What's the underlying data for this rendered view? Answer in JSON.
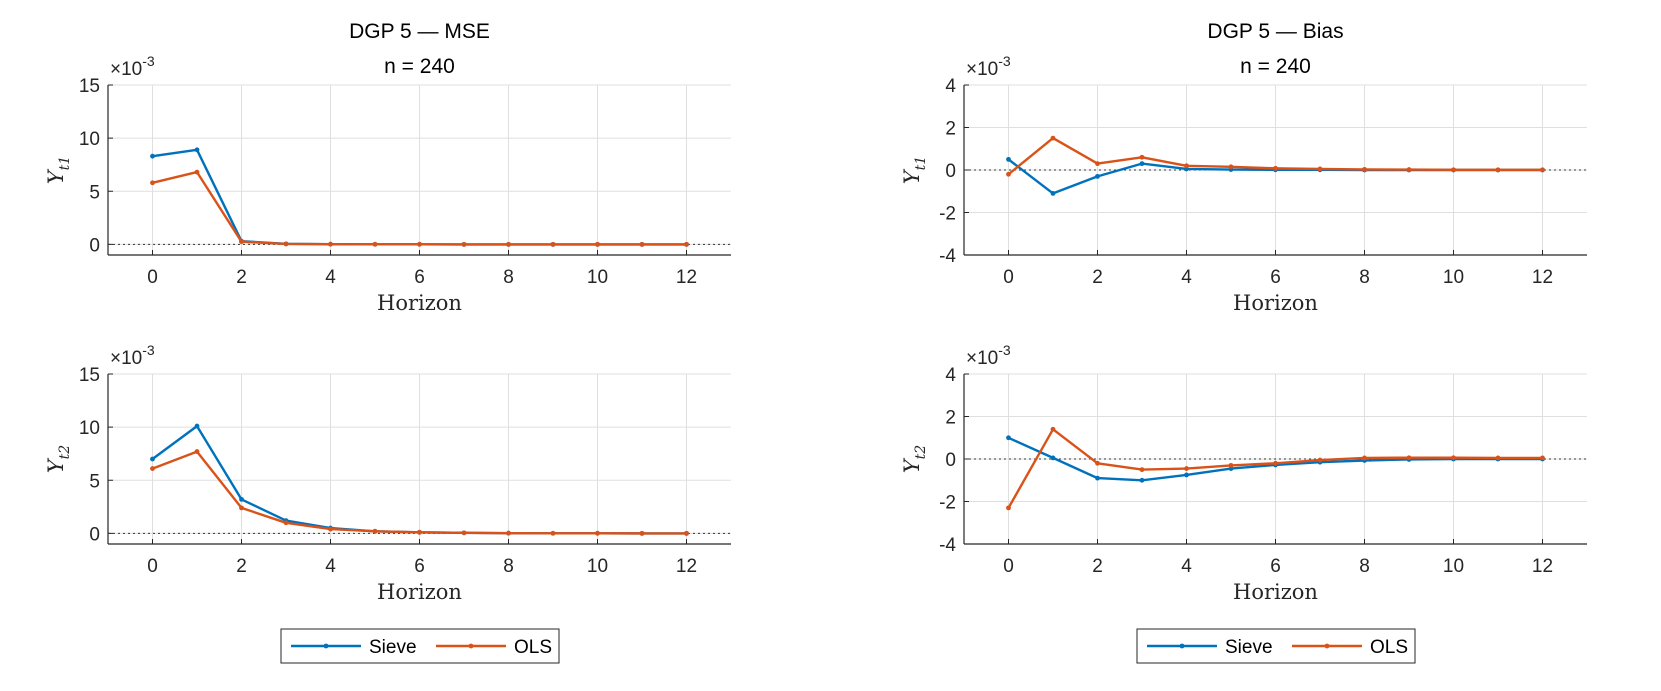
{
  "colors": {
    "sieve": "#0072BD",
    "ols": "#D95319",
    "grid": "#dfdfdf",
    "axis": "#262626"
  },
  "legend": [
    {
      "name": "Sieve",
      "color": "#0072BD"
    },
    {
      "name": "OLS",
      "color": "#D95319"
    }
  ],
  "chart_data": [
    {
      "type": "line",
      "title": "DGP 5  —  MSE",
      "subtitle": "n = 240",
      "xlabel": "Horizon",
      "ylabel": "Y_t1",
      "y_exponent": "×10^-3",
      "xlim": [
        -1,
        13
      ],
      "ylim": [
        -1,
        15
      ],
      "xticks": [
        0,
        2,
        4,
        6,
        8,
        10,
        12
      ],
      "yticks": [
        0,
        5,
        10,
        15
      ],
      "x": [
        0,
        1,
        2,
        3,
        4,
        5,
        6,
        7,
        8,
        9,
        10,
        11,
        12
      ],
      "series": [
        {
          "name": "Sieve",
          "values": [
            8.3,
            8.9,
            0.3,
            0.05,
            0.02,
            0.01,
            0.01,
            0,
            0,
            0,
            0,
            0,
            0
          ]
        },
        {
          "name": "OLS",
          "values": [
            5.8,
            6.8,
            0.25,
            0.04,
            0.02,
            0.01,
            0.01,
            0,
            0,
            0,
            0,
            0,
            0
          ]
        }
      ],
      "zero_line": true,
      "grid": true,
      "legend": "bottom"
    },
    {
      "type": "line",
      "title": "DGP 5  —  Bias",
      "subtitle": "n = 240",
      "xlabel": "Horizon",
      "ylabel": "Y_t1",
      "y_exponent": "×10^-3",
      "xlim": [
        -1,
        13
      ],
      "ylim": [
        -4,
        4
      ],
      "xticks": [
        0,
        2,
        4,
        6,
        8,
        10,
        12
      ],
      "yticks": [
        -4,
        -2,
        0,
        2,
        4
      ],
      "x": [
        0,
        1,
        2,
        3,
        4,
        5,
        6,
        7,
        8,
        9,
        10,
        11,
        12
      ],
      "series": [
        {
          "name": "Sieve",
          "values": [
            0.5,
            -1.1,
            -0.3,
            0.3,
            0.05,
            0.02,
            0.01,
            0.01,
            0.0,
            0.0,
            0.0,
            0.0,
            0.0
          ]
        },
        {
          "name": "OLS",
          "values": [
            -0.2,
            1.5,
            0.3,
            0.6,
            0.2,
            0.15,
            0.08,
            0.05,
            0.03,
            0.02,
            0.01,
            0.01,
            0.01
          ]
        }
      ],
      "zero_line": true,
      "grid": true,
      "legend": "bottom"
    },
    {
      "type": "line",
      "title": "",
      "xlabel": "Horizon",
      "ylabel": "Y_t2",
      "y_exponent": "×10^-3",
      "xlim": [
        -1,
        13
      ],
      "ylim": [
        -1,
        15
      ],
      "xticks": [
        0,
        2,
        4,
        6,
        8,
        10,
        12
      ],
      "yticks": [
        0,
        5,
        10,
        15
      ],
      "x": [
        0,
        1,
        2,
        3,
        4,
        5,
        6,
        7,
        8,
        9,
        10,
        11,
        12
      ],
      "series": [
        {
          "name": "Sieve",
          "values": [
            7.0,
            10.1,
            3.2,
            1.2,
            0.5,
            0.2,
            0.1,
            0.05,
            0.02,
            0.01,
            0.01,
            0,
            0
          ]
        },
        {
          "name": "OLS",
          "values": [
            6.1,
            7.7,
            2.4,
            1.0,
            0.4,
            0.2,
            0.1,
            0.05,
            0.02,
            0.01,
            0.01,
            0,
            0
          ]
        }
      ],
      "zero_line": true,
      "grid": true,
      "legend": "bottom"
    },
    {
      "type": "line",
      "title": "",
      "xlabel": "Horizon",
      "ylabel": "Y_t2",
      "y_exponent": "×10^-3",
      "xlim": [
        -1,
        13
      ],
      "ylim": [
        -4,
        4
      ],
      "xticks": [
        0,
        2,
        4,
        6,
        8,
        10,
        12
      ],
      "yticks": [
        -4,
        -2,
        0,
        2,
        4
      ],
      "x": [
        0,
        1,
        2,
        3,
        4,
        5,
        6,
        7,
        8,
        9,
        10,
        11,
        12
      ],
      "series": [
        {
          "name": "Sieve",
          "values": [
            1.0,
            0.05,
            -0.9,
            -1.0,
            -0.75,
            -0.45,
            -0.28,
            -0.15,
            -0.07,
            -0.02,
            0.0,
            0.0,
            0.0
          ]
        },
        {
          "name": "OLS",
          "values": [
            -2.3,
            1.4,
            -0.2,
            -0.5,
            -0.45,
            -0.3,
            -0.2,
            -0.05,
            0.05,
            0.06,
            0.06,
            0.05,
            0.05
          ]
        }
      ],
      "zero_line": true,
      "grid": true,
      "legend": "bottom"
    }
  ]
}
